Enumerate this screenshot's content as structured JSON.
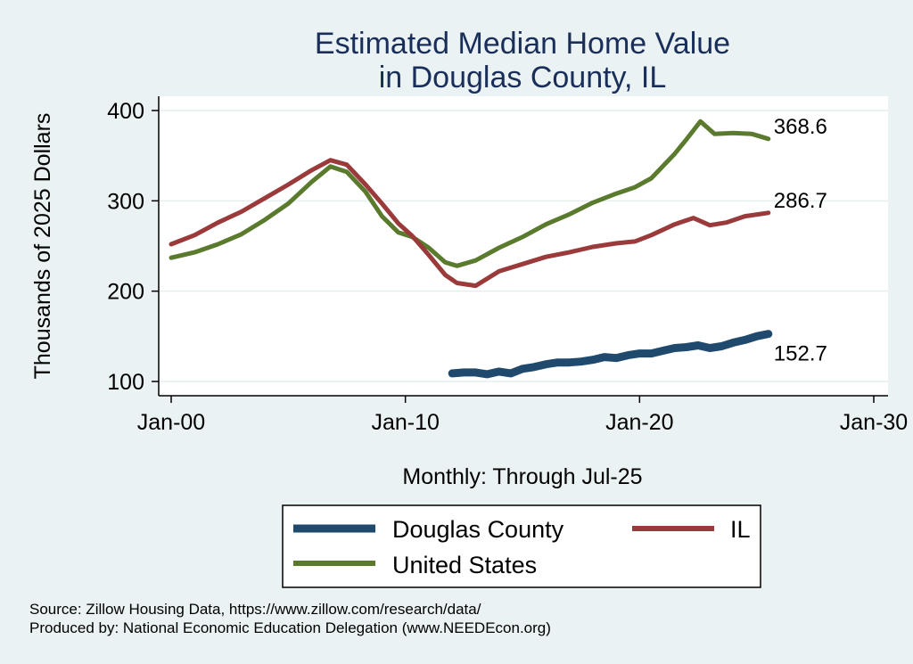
{
  "chart_data": {
    "type": "line",
    "title": [
      "Estimated Median Home Value",
      "in Douglas County, IL"
    ],
    "ylabel": "Thousands of 2025 Dollars",
    "xlabel": "Monthly: Through Jul-25",
    "xlim": [
      2000,
      2030
    ],
    "ylim": [
      90,
      410
    ],
    "yticks": [
      100,
      200,
      300,
      400
    ],
    "xticks": [
      {
        "value": 2000,
        "label": "Jan-00"
      },
      {
        "value": 2010,
        "label": "Jan-10"
      },
      {
        "value": 2020,
        "label": "Jan-20"
      },
      {
        "value": 2030,
        "label": "Jan-30"
      }
    ],
    "series": [
      {
        "name": "United States",
        "color": "#5a7a2e",
        "end_label": "368.6",
        "points": [
          [
            2000.0,
            237
          ],
          [
            2001.0,
            243
          ],
          [
            2002.0,
            252
          ],
          [
            2003.0,
            263
          ],
          [
            2004.0,
            279
          ],
          [
            2005.0,
            297
          ],
          [
            2006.0,
            321
          ],
          [
            2006.8,
            338
          ],
          [
            2007.5,
            332
          ],
          [
            2008.3,
            310
          ],
          [
            2009.0,
            283
          ],
          [
            2009.7,
            265
          ],
          [
            2010.3,
            260
          ],
          [
            2011.0,
            248
          ],
          [
            2011.7,
            232
          ],
          [
            2012.2,
            228
          ],
          [
            2013.0,
            234
          ],
          [
            2014.0,
            248
          ],
          [
            2015.0,
            260
          ],
          [
            2016.0,
            274
          ],
          [
            2017.0,
            285
          ],
          [
            2018.0,
            298
          ],
          [
            2019.0,
            308
          ],
          [
            2019.8,
            315
          ],
          [
            2020.5,
            325
          ],
          [
            2021.5,
            352
          ],
          [
            2022.0,
            368
          ],
          [
            2022.6,
            388
          ],
          [
            2023.2,
            374
          ],
          [
            2024.0,
            375
          ],
          [
            2024.8,
            374
          ],
          [
            2025.5,
            368.6
          ]
        ]
      },
      {
        "name": "IL",
        "color": "#9a3a3a",
        "end_label": "286.7",
        "points": [
          [
            2000.0,
            252
          ],
          [
            2001.0,
            262
          ],
          [
            2002.0,
            276
          ],
          [
            2003.0,
            288
          ],
          [
            2004.0,
            303
          ],
          [
            2005.0,
            318
          ],
          [
            2006.0,
            334
          ],
          [
            2006.8,
            345
          ],
          [
            2007.5,
            340
          ],
          [
            2008.3,
            318
          ],
          [
            2009.0,
            297
          ],
          [
            2009.7,
            275
          ],
          [
            2010.3,
            261
          ],
          [
            2011.0,
            240
          ],
          [
            2011.7,
            218
          ],
          [
            2012.2,
            209
          ],
          [
            2013.0,
            206
          ],
          [
            2014.0,
            222
          ],
          [
            2015.0,
            230
          ],
          [
            2016.0,
            238
          ],
          [
            2017.0,
            243
          ],
          [
            2018.0,
            249
          ],
          [
            2019.0,
            253
          ],
          [
            2019.8,
            255
          ],
          [
            2020.5,
            262
          ],
          [
            2021.5,
            274
          ],
          [
            2022.3,
            281
          ],
          [
            2023.0,
            273
          ],
          [
            2023.7,
            276
          ],
          [
            2024.5,
            283
          ],
          [
            2025.5,
            286.7
          ]
        ]
      },
      {
        "name": "Douglas County",
        "color": "#1f4a6e",
        "end_label": "152.7",
        "points": [
          [
            2012.0,
            109
          ],
          [
            2012.5,
            110
          ],
          [
            2013.0,
            110
          ],
          [
            2013.5,
            108
          ],
          [
            2014.0,
            111
          ],
          [
            2014.5,
            109
          ],
          [
            2015.0,
            114
          ],
          [
            2015.5,
            116
          ],
          [
            2016.0,
            119
          ],
          [
            2016.5,
            121
          ],
          [
            2017.0,
            121
          ],
          [
            2017.5,
            122
          ],
          [
            2018.0,
            124
          ],
          [
            2018.5,
            127
          ],
          [
            2019.0,
            126
          ],
          [
            2019.5,
            129
          ],
          [
            2020.0,
            131
          ],
          [
            2020.5,
            131
          ],
          [
            2021.0,
            134
          ],
          [
            2021.5,
            137
          ],
          [
            2022.0,
            138
          ],
          [
            2022.5,
            140
          ],
          [
            2023.0,
            137
          ],
          [
            2023.5,
            139
          ],
          [
            2024.0,
            143
          ],
          [
            2024.5,
            146
          ],
          [
            2025.0,
            150
          ],
          [
            2025.5,
            152.7
          ]
        ]
      }
    ],
    "legend": [
      {
        "name": "Douglas County",
        "color": "#1f4a6e"
      },
      {
        "name": "IL",
        "color": "#9a3a3a"
      },
      {
        "name": "United States",
        "color": "#5a7a2e"
      }
    ]
  },
  "notes": {
    "source": "Source: Zillow Housing Data, https://www.zillow.com/research/data/",
    "produced": "Produced by: National Economic Education Delegation (www.NEEDEcon.org)"
  }
}
